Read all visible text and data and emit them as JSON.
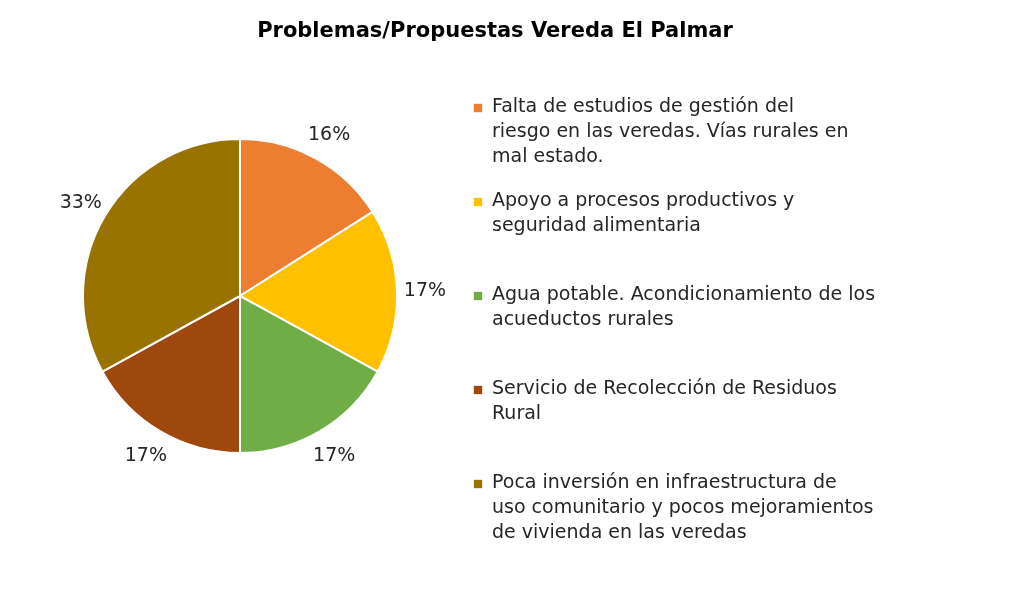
{
  "chart_data": {
    "type": "pie",
    "title": "Problemas/Propuestas Vereda El Palmar",
    "categories": [
      "Falta de estudios de gestión del riesgo en las veredas. Vías rurales en mal estado.",
      "Apoyo a procesos productivos y seguridad alimentaria",
      "Agua potable. Acondicionamiento de los acueductos rurales",
      "Servicio de Recolección de Residuos Rural",
      "Poca inversión en infraestructura de uso comunitario y pocos mejoramientos de vivienda en las veredas"
    ],
    "values": [
      16,
      17,
      17,
      17,
      33
    ],
    "value_labels": [
      "16%",
      "17%",
      "17%",
      "17%",
      "33%"
    ],
    "colors": [
      "#ed7d31",
      "#ffc000",
      "#70ad47",
      "#9e480e",
      "#997300"
    ],
    "legend": "right"
  }
}
